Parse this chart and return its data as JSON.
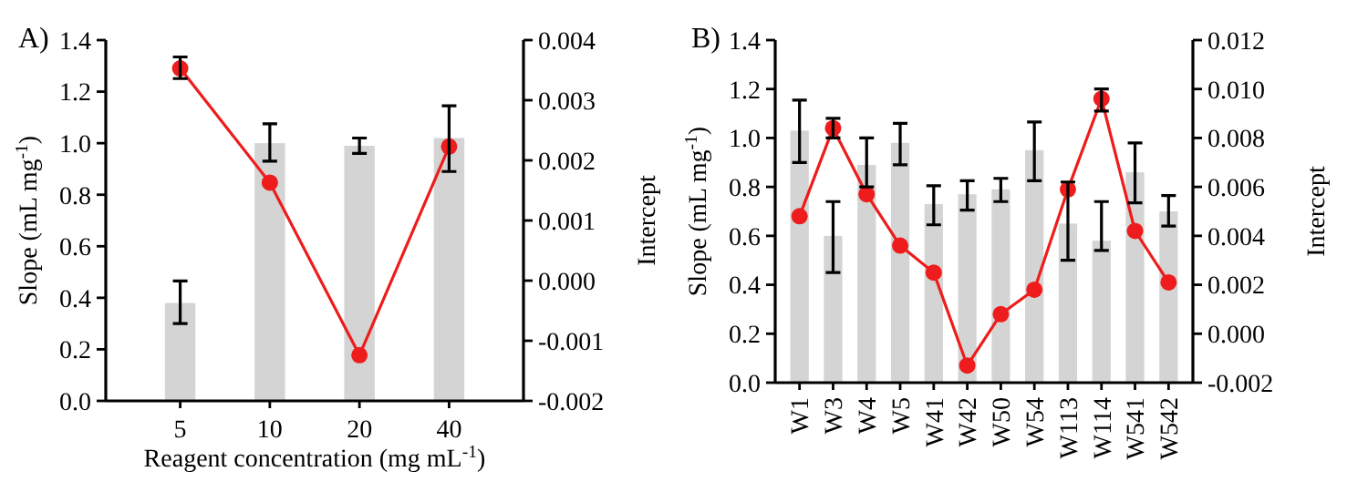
{
  "chart_data": [
    {
      "type": "bar",
      "title": "A)",
      "categories": [
        "5",
        "10",
        "20",
        "40"
      ],
      "xlabel": "Reagent concentration (mg mL$^{-1}$)",
      "ylabel": "Slope (mL mg$^{-1}$)",
      "y2label": "Intercept",
      "series": [
        {
          "color": "#d4d4d4",
          "values": [
            0.38,
            1.0,
            0.99,
            1.02
          ],
          "errors": [
            [
              0.3,
              0.465
            ],
            [
              0.93,
              1.075
            ],
            [
              0.96,
              1.02
            ],
            [
              0.89,
              1.145
            ]
          ]
        },
        {
          "type": "line",
          "axis": "y2",
          "color": "#ee1c1c",
          "values": [
            0.00353,
            0.00163,
            -0.00124,
            0.00223
          ],
          "errors": [
            [
              0.00336,
              0.00372
            ],
            null,
            null,
            null
          ]
        }
      ],
      "ylim": [
        0,
        1.4
      ],
      "yticks": [
        {
          "value": 0,
          "label": "0.0"
        },
        {
          "value": 0.2,
          "label": "0.2"
        },
        {
          "value": 0.4,
          "label": "0.4"
        },
        {
          "value": 0.6,
          "label": "0.6"
        },
        {
          "value": 0.8,
          "label": "0.8"
        },
        {
          "value": 1.0,
          "label": "1.0"
        },
        {
          "value": 1.2,
          "label": "1.2"
        },
        {
          "value": 1.4,
          "label": "1.4"
        }
      ],
      "y2lim": [
        -0.002,
        0.004
      ],
      "y2ticks": [
        {
          "value": -0.002,
          "label": "-0.002"
        },
        {
          "value": -0.001,
          "label": "-0.001"
        },
        {
          "value": 0,
          "label": "0.000"
        },
        {
          "value": 0.001,
          "label": "0.001"
        },
        {
          "value": 0.002,
          "label": "0.002"
        },
        {
          "value": 0.003,
          "label": "0.003"
        },
        {
          "value": 0.004,
          "label": "0.004"
        }
      ],
      "marker": "circle"
    },
    {
      "type": "bar",
      "title": "B)",
      "categories": [
        "W1",
        "W3",
        "W4",
        "W5",
        "W41",
        "W42",
        "W50",
        "W54",
        "W113",
        "W114",
        "W541",
        "W542"
      ],
      "ylabel": "Slope (mL mg$^{-1}$)",
      "y2label": "Intercept",
      "series": [
        {
          "color": "#d4d4d4",
          "values": [
            1.03,
            0.6,
            0.89,
            0.98,
            0.73,
            0.77,
            0.79,
            0.95,
            0.65,
            0.58,
            0.86,
            0.7
          ],
          "errors": [
            [
              0.9,
              1.155
            ],
            [
              0.45,
              0.74
            ],
            [
              0.8,
              1.0
            ],
            [
              0.89,
              1.06
            ],
            [
              0.645,
              0.805
            ],
            [
              0.705,
              0.825
            ],
            [
              0.74,
              0.835
            ],
            [
              0.825,
              1.065
            ],
            [
              0.5,
              0.82
            ],
            [
              0.54,
              0.74
            ],
            [
              0.735,
              0.98
            ],
            [
              0.64,
              0.765
            ]
          ]
        },
        {
          "type": "line",
          "axis": "y2",
          "color": "#ee1c1c",
          "values": [
            0.0048,
            0.0084,
            0.0057,
            0.0036,
            0.0025,
            -0.0013,
            0.0008,
            0.0018,
            0.0059,
            0.0096,
            0.0042,
            0.0021
          ],
          "errors": [
            null,
            [
              0.008,
              0.0088
            ],
            null,
            null,
            null,
            null,
            null,
            null,
            null,
            [
              0.0091,
              0.01
            ],
            null,
            null
          ]
        }
      ],
      "ylim": [
        0,
        1.4
      ],
      "yticks": [
        {
          "value": 0,
          "label": "0.0"
        },
        {
          "value": 0.2,
          "label": "0.2"
        },
        {
          "value": 0.4,
          "label": "0.4"
        },
        {
          "value": 0.6,
          "label": "0.6"
        },
        {
          "value": 0.8,
          "label": "0.8"
        },
        {
          "value": 1.0,
          "label": "1.0"
        },
        {
          "value": 1.2,
          "label": "1.2"
        },
        {
          "value": 1.4,
          "label": "1.4"
        }
      ],
      "y2lim": [
        -0.002,
        0.012
      ],
      "y2ticks": [
        {
          "value": -0.002,
          "label": "-0.002"
        },
        {
          "value": 0,
          "label": "0.000"
        },
        {
          "value": 0.002,
          "label": "0.002"
        },
        {
          "value": 0.004,
          "label": "0.004"
        },
        {
          "value": 0.006,
          "label": "0.006"
        },
        {
          "value": 0.008,
          "label": "0.008"
        },
        {
          "value": 0.01,
          "label": "0.010"
        },
        {
          "value": 0.012,
          "label": "0.012"
        }
      ],
      "marker": "circle"
    }
  ]
}
